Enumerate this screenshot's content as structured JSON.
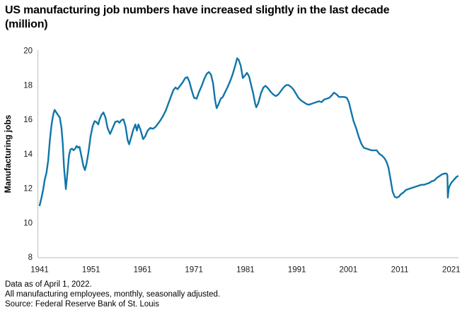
{
  "title": {
    "line1": "US manufacturing job numbers have increased slightly in the last decade",
    "line2": "(million)"
  },
  "footer": {
    "line1": "Data as of April 1, 2022.",
    "line2": "All manufacturing employees, monthly, seasonally adjusted.",
    "line3": "Source: Federal Reserve Bank of St. Louis"
  },
  "chart_data": {
    "type": "line",
    "title": "US manufacturing job numbers have increased slightly in the last decade (million)",
    "xlabel": "",
    "ylabel": "Manufacturing jobs",
    "xlim": [
      1941,
      2022.3
    ],
    "ylim": [
      8,
      20
    ],
    "x_ticks": [
      1941,
      1951,
      1961,
      1971,
      1981,
      1991,
      2001,
      2011,
      2021
    ],
    "y_ticks": [
      8,
      10,
      12,
      14,
      16,
      18,
      20
    ],
    "grid": false,
    "legend_position": "none",
    "line_color": "#1076a9",
    "axis_color": "#c9c9c9",
    "tick_label_color": "#1a1a1a",
    "series": [
      {
        "name": "All manufacturing employees (millions, monthly, seasonally adjusted)",
        "points": [
          [
            1941.0,
            11.0
          ],
          [
            1941.33,
            11.4
          ],
          [
            1941.67,
            11.9
          ],
          [
            1942.0,
            12.5
          ],
          [
            1942.33,
            12.9
          ],
          [
            1942.67,
            13.6
          ],
          [
            1943.0,
            14.8
          ],
          [
            1943.33,
            15.7
          ],
          [
            1943.67,
            16.3
          ],
          [
            1943.92,
            16.55
          ],
          [
            1944.25,
            16.4
          ],
          [
            1944.58,
            16.25
          ],
          [
            1944.92,
            16.1
          ],
          [
            1945.25,
            15.5
          ],
          [
            1945.5,
            14.6
          ],
          [
            1945.75,
            13.2
          ],
          [
            1946.1,
            11.95
          ],
          [
            1946.4,
            12.9
          ],
          [
            1946.7,
            13.9
          ],
          [
            1947.0,
            14.25
          ],
          [
            1947.3,
            14.3
          ],
          [
            1947.6,
            14.2
          ],
          [
            1947.9,
            14.3
          ],
          [
            1948.2,
            14.45
          ],
          [
            1948.5,
            14.35
          ],
          [
            1948.75,
            14.4
          ],
          [
            1949.1,
            13.9
          ],
          [
            1949.5,
            13.3
          ],
          [
            1949.8,
            13.05
          ],
          [
            1950.1,
            13.4
          ],
          [
            1950.5,
            14.1
          ],
          [
            1950.9,
            15.0
          ],
          [
            1951.3,
            15.6
          ],
          [
            1951.7,
            15.9
          ],
          [
            1952.0,
            15.85
          ],
          [
            1952.4,
            15.7
          ],
          [
            1952.6,
            15.95
          ],
          [
            1953.0,
            16.25
          ],
          [
            1953.4,
            16.4
          ],
          [
            1953.8,
            16.1
          ],
          [
            1954.2,
            15.5
          ],
          [
            1954.7,
            15.15
          ],
          [
            1955.2,
            15.5
          ],
          [
            1955.7,
            15.85
          ],
          [
            1956.2,
            15.9
          ],
          [
            1956.5,
            15.8
          ],
          [
            1956.9,
            15.95
          ],
          [
            1957.3,
            16.0
          ],
          [
            1957.7,
            15.6
          ],
          [
            1958.1,
            14.8
          ],
          [
            1958.4,
            14.55
          ],
          [
            1958.8,
            14.95
          ],
          [
            1959.2,
            15.4
          ],
          [
            1959.6,
            15.7
          ],
          [
            1959.9,
            15.35
          ],
          [
            1960.2,
            15.7
          ],
          [
            1960.6,
            15.4
          ],
          [
            1961.1,
            14.85
          ],
          [
            1961.5,
            15.0
          ],
          [
            1962.0,
            15.35
          ],
          [
            1962.5,
            15.5
          ],
          [
            1963.0,
            15.45
          ],
          [
            1963.5,
            15.55
          ],
          [
            1964.0,
            15.75
          ],
          [
            1964.5,
            15.95
          ],
          [
            1965.0,
            16.2
          ],
          [
            1965.5,
            16.5
          ],
          [
            1966.0,
            16.9
          ],
          [
            1966.5,
            17.3
          ],
          [
            1967.0,
            17.7
          ],
          [
            1967.4,
            17.85
          ],
          [
            1967.8,
            17.75
          ],
          [
            1968.3,
            17.95
          ],
          [
            1968.8,
            18.15
          ],
          [
            1969.3,
            18.4
          ],
          [
            1969.7,
            18.45
          ],
          [
            1970.1,
            18.2
          ],
          [
            1970.5,
            17.75
          ],
          [
            1971.0,
            17.25
          ],
          [
            1971.5,
            17.2
          ],
          [
            1972.0,
            17.6
          ],
          [
            1972.5,
            17.95
          ],
          [
            1973.0,
            18.35
          ],
          [
            1973.5,
            18.65
          ],
          [
            1973.9,
            18.75
          ],
          [
            1974.3,
            18.6
          ],
          [
            1974.7,
            18.1
          ],
          [
            1975.1,
            17.1
          ],
          [
            1975.4,
            16.65
          ],
          [
            1975.8,
            16.9
          ],
          [
            1976.2,
            17.2
          ],
          [
            1976.6,
            17.3
          ],
          [
            1977.0,
            17.55
          ],
          [
            1977.5,
            17.85
          ],
          [
            1978.0,
            18.2
          ],
          [
            1978.5,
            18.6
          ],
          [
            1979.0,
            19.1
          ],
          [
            1979.4,
            19.55
          ],
          [
            1979.7,
            19.45
          ],
          [
            1980.1,
            19.1
          ],
          [
            1980.5,
            18.4
          ],
          [
            1980.9,
            18.55
          ],
          [
            1981.3,
            18.7
          ],
          [
            1981.7,
            18.5
          ],
          [
            1982.1,
            18.0
          ],
          [
            1982.5,
            17.5
          ],
          [
            1982.9,
            16.9
          ],
          [
            1983.1,
            16.7
          ],
          [
            1983.5,
            16.95
          ],
          [
            1984.0,
            17.5
          ],
          [
            1984.5,
            17.85
          ],
          [
            1984.9,
            17.95
          ],
          [
            1985.4,
            17.8
          ],
          [
            1985.9,
            17.6
          ],
          [
            1986.4,
            17.45
          ],
          [
            1986.9,
            17.35
          ],
          [
            1987.4,
            17.45
          ],
          [
            1987.9,
            17.65
          ],
          [
            1988.4,
            17.85
          ],
          [
            1988.9,
            17.98
          ],
          [
            1989.3,
            18.0
          ],
          [
            1989.8,
            17.9
          ],
          [
            1990.3,
            17.75
          ],
          [
            1990.8,
            17.5
          ],
          [
            1991.3,
            17.25
          ],
          [
            1991.8,
            17.1
          ],
          [
            1992.3,
            17.0
          ],
          [
            1992.8,
            16.9
          ],
          [
            1993.3,
            16.85
          ],
          [
            1993.8,
            16.9
          ],
          [
            1994.3,
            16.95
          ],
          [
            1994.8,
            17.0
          ],
          [
            1995.3,
            17.05
          ],
          [
            1995.8,
            17.0
          ],
          [
            1996.3,
            17.15
          ],
          [
            1996.8,
            17.2
          ],
          [
            1997.3,
            17.25
          ],
          [
            1997.8,
            17.4
          ],
          [
            1998.2,
            17.55
          ],
          [
            1998.7,
            17.45
          ],
          [
            1999.2,
            17.3
          ],
          [
            1999.7,
            17.3
          ],
          [
            2000.2,
            17.3
          ],
          [
            2000.7,
            17.25
          ],
          [
            2001.1,
            17.0
          ],
          [
            2001.5,
            16.5
          ],
          [
            2002.0,
            15.9
          ],
          [
            2002.5,
            15.5
          ],
          [
            2003.0,
            15.0
          ],
          [
            2003.5,
            14.6
          ],
          [
            2004.0,
            14.35
          ],
          [
            2004.5,
            14.3
          ],
          [
            2005.0,
            14.25
          ],
          [
            2005.5,
            14.2
          ],
          [
            2006.0,
            14.2
          ],
          [
            2006.5,
            14.2
          ],
          [
            2007.0,
            14.0
          ],
          [
            2007.5,
            13.9
          ],
          [
            2008.0,
            13.75
          ],
          [
            2008.4,
            13.55
          ],
          [
            2008.8,
            13.2
          ],
          [
            2009.2,
            12.5
          ],
          [
            2009.6,
            11.8
          ],
          [
            2010.0,
            11.5
          ],
          [
            2010.4,
            11.45
          ],
          [
            2010.8,
            11.5
          ],
          [
            2011.2,
            11.65
          ],
          [
            2011.7,
            11.75
          ],
          [
            2012.2,
            11.9
          ],
          [
            2012.7,
            11.95
          ],
          [
            2013.2,
            12.0
          ],
          [
            2013.7,
            12.05
          ],
          [
            2014.2,
            12.1
          ],
          [
            2014.7,
            12.15
          ],
          [
            2015.2,
            12.2
          ],
          [
            2015.7,
            12.2
          ],
          [
            2016.2,
            12.25
          ],
          [
            2016.7,
            12.3
          ],
          [
            2017.2,
            12.4
          ],
          [
            2017.7,
            12.45
          ],
          [
            2018.2,
            12.6
          ],
          [
            2018.7,
            12.7
          ],
          [
            2019.2,
            12.8
          ],
          [
            2019.7,
            12.85
          ],
          [
            2020.1,
            12.85
          ],
          [
            2020.25,
            12.75
          ],
          [
            2020.33,
            11.45
          ],
          [
            2020.5,
            11.95
          ],
          [
            2020.7,
            12.15
          ],
          [
            2020.9,
            12.25
          ],
          [
            2021.1,
            12.35
          ],
          [
            2021.4,
            12.45
          ],
          [
            2021.7,
            12.55
          ],
          [
            2022.0,
            12.65
          ],
          [
            2022.25,
            12.7
          ]
        ]
      }
    ]
  }
}
